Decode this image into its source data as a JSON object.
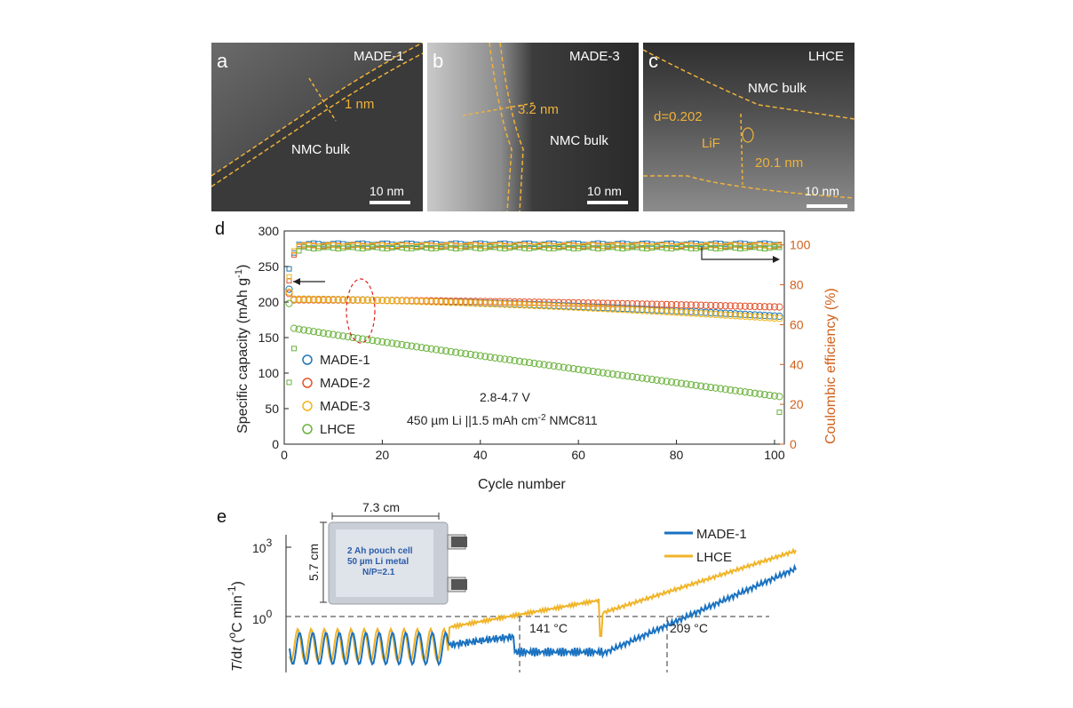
{
  "panels": {
    "a": {
      "letter": "a",
      "title": "MADE-1",
      "ann": "1 nm",
      "bulk": "NMC bulk",
      "scale": "10 nm"
    },
    "b": {
      "letter": "b",
      "title": "MADE-3",
      "ann": "3.2 nm",
      "bulk": "NMC bulk",
      "scale": "10 nm"
    },
    "c": {
      "letter": "c",
      "title": "LHCE",
      "ann": "20.1 nm",
      "bulk": "NMC bulk",
      "d_spacing": "d=0.202",
      "lif": "LiF",
      "scale": "10 nm"
    }
  },
  "colors": {
    "made1": "#1f77b4",
    "made2": "#e2542b",
    "made3": "#f2b418",
    "lhce": "#6ab23c",
    "right_axis": "#d2601a",
    "e_made1": "#1a72c0",
    "e_lhce": "#f0b428"
  },
  "chart_data": [
    {
      "type": "scatter",
      "panel": "d",
      "xlabel": "Cycle number",
      "ylabel": "Specific capacity (mAh g⁻¹)",
      "y2label": "Coulombic efficiency (%)",
      "xlim": [
        0,
        102
      ],
      "ylim": [
        0,
        300
      ],
      "y2lim": [
        0,
        107
      ],
      "xticks": [
        0,
        20,
        40,
        60,
        80,
        100
      ],
      "yticks": [
        0,
        50,
        100,
        150,
        200,
        250,
        300
      ],
      "y2ticks": [
        0,
        20,
        40,
        60,
        80,
        100
      ],
      "legend_position": "left",
      "legend": [
        "MADE-1",
        "MADE-2",
        "MADE-3",
        "LHCE"
      ],
      "annotations": [
        "2.8-4.7 V",
        "450 µm Li ||1.5 mAh cm⁻² NMC811"
      ],
      "capacity_series": [
        {
          "name": "MADE-1",
          "start": 204,
          "end": 180,
          "first": 218
        },
        {
          "name": "MADE-2",
          "start": 203,
          "end": 193,
          "first": 212
        },
        {
          "name": "MADE-3",
          "start": 204,
          "end": 177,
          "first": 214
        },
        {
          "name": "LHCE",
          "start": 163,
          "end": 67,
          "first": 198
        }
      ],
      "ce_series": [
        {
          "name": "MADE-1",
          "steady": 100.5,
          "first": [
            88,
            96
          ]
        },
        {
          "name": "MADE-2",
          "steady": 99.6,
          "first": [
            82,
            95
          ]
        },
        {
          "name": "MADE-3",
          "steady": 99.7,
          "first": [
            84,
            97
          ]
        },
        {
          "name": "LHCE",
          "steady": 98.5,
          "first": [
            31,
            48,
            97
          ]
        }
      ]
    },
    {
      "type": "line",
      "panel": "e",
      "ylabel": "T/dt (°C min⁻¹)",
      "yscale": "log",
      "yticks_label": [
        "10⁰",
        "10³"
      ],
      "legend": [
        "MADE-1",
        "LHCE"
      ],
      "legend_position": "top-right",
      "annotations": [
        "141 °C",
        "209 °C"
      ],
      "inset": {
        "width_label": "7.3 cm",
        "height_label": "5.7 cm",
        "lines": [
          "2 Ah pouch cell",
          "50 µm Li metal",
          "N/P=2.1"
        ]
      }
    }
  ]
}
